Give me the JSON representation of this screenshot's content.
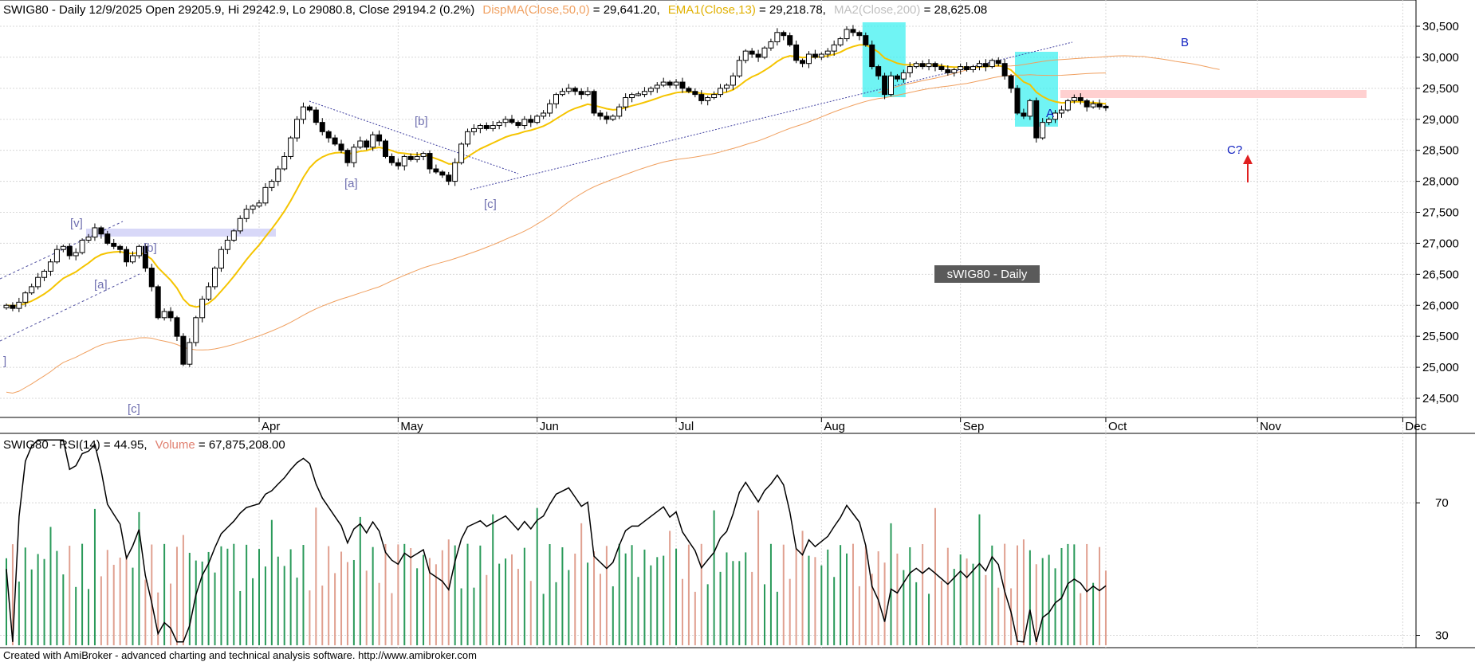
{
  "header": {
    "symbol_info": "SWIG80 - Daily 12/9/2025 Open 29205.9, Hi 29242.9, Lo 29080.8, Close 29194.2 (0.2%)",
    "dispma_label": "DispMA(Close,50,0)",
    "dispma_value": " = 29,641.20,",
    "ema_label": "EMA1(Close,13)",
    "ema_value": " = 29,218.78,",
    "ma200_label": "MA2(Close,200)",
    "ma200_value": " = 28,625.08"
  },
  "watermark": "sWIG80 - Daily",
  "lower_header": {
    "rsi_label": "SWIG80 - RSI(14) = 44.95,",
    "volume_label": "Volume",
    "volume_value": " = 67,875,208.00"
  },
  "footer": "Created with AmiBroker - advanced charting and technical analysis software. http://www.amibroker.com",
  "colors": {
    "up": "#ffffff",
    "down": "#000000",
    "ema": "#f5c400",
    "ma200": "#f0a060",
    "dispma": "#f0a060",
    "ma200_header": "#c0c0c0",
    "wave_grey": "#7070b0",
    "wave_blue": "#1020c0",
    "cyan": "#40f0f0",
    "pink": "#ffd0d0",
    "lavender": "#d8d8f8",
    "vol_up": "#2a9a5a",
    "vol_down": "#e0a090",
    "arrow": "#e02020"
  },
  "chart_data": [
    {
      "type": "candlestick",
      "title": "SWIG80 - Daily",
      "y_axis_ticks": [
        24500,
        25000,
        25500,
        26000,
        26500,
        27000,
        27500,
        28000,
        28500,
        29000,
        29500,
        30000,
        30500
      ],
      "y_axis_tick_labels": [
        "24,500",
        "25,000",
        "25,500",
        "26,000",
        "26,500",
        "27,000",
        "27,500",
        "28,000",
        "28,500",
        "29,000",
        "29,500",
        "30,000",
        "30,500"
      ],
      "ylim": [
        24150,
        30800
      ],
      "x_month_labels": [
        "Apr",
        "May",
        "Jun",
        "Jul",
        "Aug",
        "Sep",
        "Oct",
        "Nov",
        "Dec"
      ],
      "x_month_index": [
        40,
        62,
        84,
        106,
        129,
        151,
        174,
        198,
        221
      ],
      "last_bar": {
        "date": "12/9/2025",
        "open": 29205.9,
        "high": 29242.9,
        "low": 29080.8,
        "close": 29194.2
      },
      "close": [
        26000,
        25950,
        26050,
        26200,
        26300,
        26450,
        26550,
        26700,
        26900,
        26950,
        26800,
        26850,
        27050,
        27100,
        27250,
        27150,
        27000,
        26950,
        26900,
        26700,
        26800,
        26950,
        26600,
        26300,
        25800,
        25900,
        25800,
        25500,
        25050,
        25400,
        25800,
        26100,
        26300,
        26600,
        26900,
        27050,
        27200,
        27400,
        27550,
        27600,
        27650,
        27900,
        28000,
        28200,
        28400,
        28700,
        29000,
        29200,
        29150,
        28950,
        28800,
        28700,
        28600,
        28500,
        28300,
        28550,
        28650,
        28550,
        28750,
        28650,
        28400,
        28300,
        28250,
        28400,
        28350,
        28400,
        28450,
        28200,
        28150,
        28100,
        28000,
        28300,
        28600,
        28800,
        28850,
        28900,
        28850,
        28900,
        28950,
        29000,
        28950,
        28900,
        29000,
        28950,
        29050,
        29100,
        29250,
        29400,
        29450,
        29500,
        29450,
        29400,
        29450,
        29100,
        29050,
        29000,
        29050,
        29200,
        29350,
        29400,
        29400,
        29450,
        29500,
        29550,
        29600,
        29550,
        29600,
        29500,
        29450,
        29400,
        29300,
        29350,
        29400,
        29500,
        29550,
        29700,
        29950,
        30100,
        30050,
        30000,
        30150,
        30250,
        30400,
        30350,
        30200,
        29950,
        29900,
        30050,
        30000,
        30050,
        30100,
        30200,
        30300,
        30450,
        30400,
        30350,
        30200,
        29850,
        29700,
        29400,
        29700,
        29650,
        29750,
        29850,
        29900,
        29850,
        29900,
        29850,
        29800,
        29750,
        29800,
        29850,
        29800,
        29850,
        29900,
        29850,
        29950,
        29900,
        29700,
        29500,
        29100,
        29050,
        29300,
        28700,
        28950,
        29000,
        29100,
        29150,
        29300,
        29350,
        29300,
        29200,
        29250,
        29200,
        29194.2
      ],
      "ema13_last": 29218.78,
      "ma200_last": 28625.08,
      "dispma50_last": 29641.2,
      "wave_labels": [
        "[v]",
        "[a]",
        "[b]",
        "[c]",
        "]",
        "[a]",
        "[b]",
        "[c]",
        "A",
        "B",
        "C?"
      ]
    },
    {
      "type": "line",
      "title": "SWIG80 - RSI(14)",
      "y_axis_tick_labels": [
        "30",
        "70"
      ],
      "ylim": [
        27,
        90
      ],
      "series": [
        {
          "name": "RSI(14)",
          "last": 44.95
        }
      ],
      "volume_last": 67875208.0
    }
  ]
}
